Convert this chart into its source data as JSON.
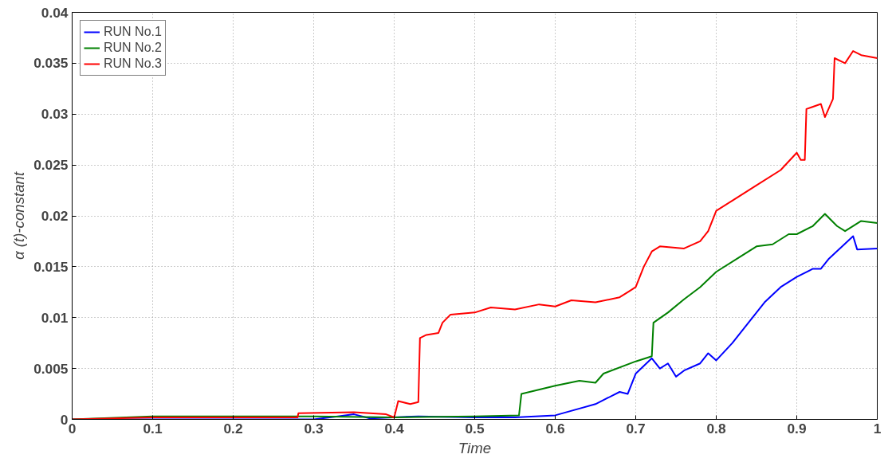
{
  "chart_data": {
    "type": "line",
    "xlabel": "Time",
    "ylabel": "α (t)-constant",
    "xlim": [
      0,
      1
    ],
    "ylim": [
      0,
      0.04
    ],
    "xticks": [
      0,
      0.1,
      0.2,
      0.3,
      0.4,
      0.5,
      0.6,
      0.7,
      0.8,
      0.9,
      1
    ],
    "yticks": [
      0,
      0.005,
      0.01,
      0.015,
      0.02,
      0.025,
      0.03,
      0.035,
      0.04
    ],
    "grid": true,
    "legend": "top left",
    "line_style": "solid",
    "series": [
      {
        "name": "RUN No.1",
        "color": "#0000ff",
        "x": [
          0,
          0.3,
          0.33,
          0.35,
          0.37,
          0.43,
          0.5,
          0.55,
          0.6,
          0.65,
          0.68,
          0.69,
          0.7,
          0.72,
          0.73,
          0.74,
          0.75,
          0.76,
          0.78,
          0.79,
          0.8,
          0.82,
          0.84,
          0.86,
          0.88,
          0.9,
          0.92,
          0.93,
          0.94,
          0.97,
          0.975,
          1.0
        ],
        "values": [
          0,
          0,
          0.0003,
          0.0005,
          0.0001,
          0.0003,
          0.0002,
          0.0002,
          0.0004,
          0.0015,
          0.0027,
          0.0025,
          0.0045,
          0.006,
          0.005,
          0.0055,
          0.0042,
          0.0048,
          0.0055,
          0.0065,
          0.0058,
          0.0075,
          0.0095,
          0.0115,
          0.013,
          0.014,
          0.0148,
          0.0148,
          0.0158,
          0.018,
          0.0167,
          0.0168
        ]
      },
      {
        "name": "RUN No.2",
        "color": "#008000",
        "x": [
          0,
          0.1,
          0.3,
          0.4,
          0.5,
          0.555,
          0.558,
          0.6,
          0.63,
          0.65,
          0.66,
          0.7,
          0.72,
          0.722,
          0.74,
          0.76,
          0.78,
          0.8,
          0.83,
          0.85,
          0.87,
          0.89,
          0.9,
          0.92,
          0.935,
          0.95,
          0.96,
          0.98,
          1.0
        ],
        "values": [
          0,
          0.0003,
          0.0003,
          0.0002,
          0.0003,
          0.0004,
          0.0025,
          0.0033,
          0.0038,
          0.0036,
          0.0045,
          0.0057,
          0.0062,
          0.0095,
          0.0105,
          0.0118,
          0.013,
          0.0145,
          0.016,
          0.017,
          0.0172,
          0.0182,
          0.0182,
          0.019,
          0.0202,
          0.019,
          0.0185,
          0.0195,
          0.0193
        ]
      },
      {
        "name": "RUN No.3",
        "color": "#ff0000",
        "x": [
          0,
          0.1,
          0.28,
          0.281,
          0.35,
          0.39,
          0.4,
          0.405,
          0.42,
          0.43,
          0.432,
          0.44,
          0.455,
          0.46,
          0.47,
          0.5,
          0.52,
          0.55,
          0.58,
          0.6,
          0.62,
          0.65,
          0.68,
          0.69,
          0.7,
          0.71,
          0.72,
          0.73,
          0.76,
          0.78,
          0.79,
          0.8,
          0.82,
          0.85,
          0.88,
          0.9,
          0.905,
          0.91,
          0.912,
          0.93,
          0.935,
          0.945,
          0.947,
          0.96,
          0.97,
          0.98,
          1.0
        ],
        "values": [
          0,
          0.0002,
          0.0002,
          0.0006,
          0.0007,
          0.0005,
          0.0002,
          0.0018,
          0.0015,
          0.0017,
          0.008,
          0.0083,
          0.0085,
          0.0095,
          0.0103,
          0.0105,
          0.011,
          0.0108,
          0.0113,
          0.0111,
          0.0117,
          0.0115,
          0.012,
          0.0125,
          0.013,
          0.015,
          0.0165,
          0.017,
          0.0168,
          0.0175,
          0.0185,
          0.0205,
          0.0215,
          0.023,
          0.0245,
          0.0262,
          0.0255,
          0.0255,
          0.0305,
          0.031,
          0.0297,
          0.0315,
          0.0355,
          0.035,
          0.0362,
          0.0358,
          0.0355
        ]
      }
    ]
  }
}
